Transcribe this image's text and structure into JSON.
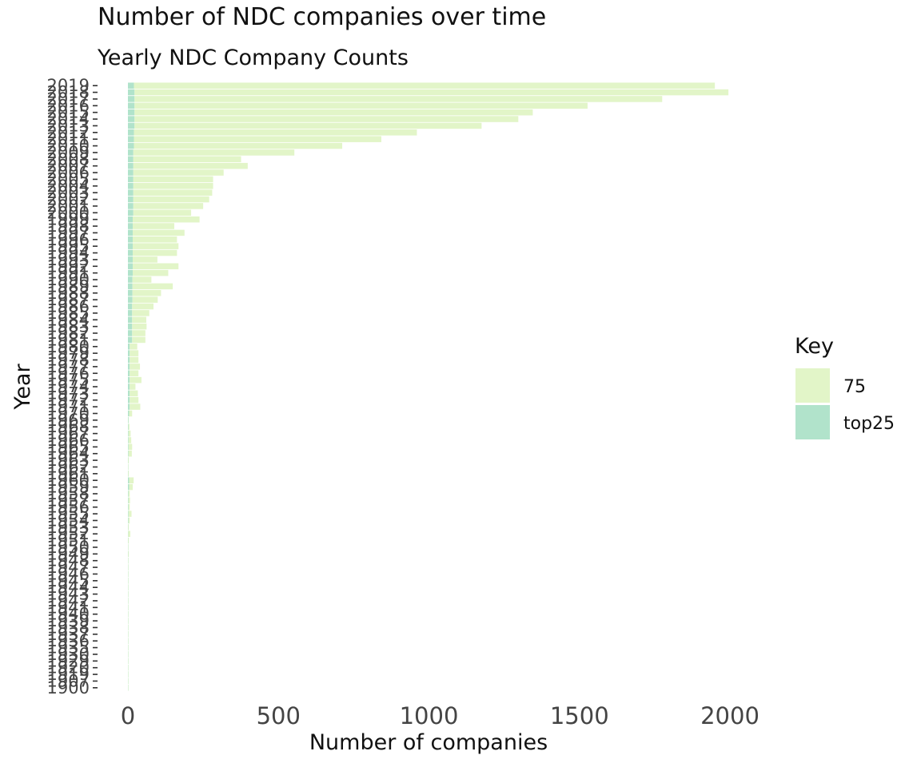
{
  "chart_data": {
    "type": "bar",
    "orientation": "horizontal",
    "stacked": true,
    "title": "Number of NDC companies over time",
    "subtitle": "Yearly NDC Company Counts",
    "xlabel": "Number of companies",
    "ylabel": "Year",
    "xlim": [
      0,
      2100
    ],
    "xticks": [
      0,
      500,
      1000,
      1500,
      2000
    ],
    "grid": false,
    "legend": {
      "title": "Key",
      "position": "right"
    },
    "colors": {
      "75": "#e2f5c8",
      "top25": "#b1e3cb"
    },
    "categories": [
      "2019",
      "2018",
      "2017",
      "2016",
      "2015",
      "2014",
      "2013",
      "2012",
      "2011",
      "2010",
      "2009",
      "2008",
      "2007",
      "2006",
      "2005",
      "2004",
      "2003",
      "2002",
      "2001",
      "2000",
      "1999",
      "1998",
      "1997",
      "1996",
      "1995",
      "1994",
      "1993",
      "1992",
      "1991",
      "1990",
      "1989",
      "1988",
      "1987",
      "1986",
      "1985",
      "1984",
      "1983",
      "1982",
      "1981",
      "1980",
      "1979",
      "1978",
      "1977",
      "1976",
      "1975",
      "1974",
      "1973",
      "1972",
      "1971",
      "1970",
      "1969",
      "1968",
      "1967",
      "1966",
      "1965",
      "1964",
      "1963",
      "1962",
      "1961",
      "1960",
      "1959",
      "1958",
      "1957",
      "1956",
      "1955",
      "1954",
      "1953",
      "1952",
      "1951",
      "1950",
      "1949",
      "1948",
      "1947",
      "1946",
      "1945",
      "1944",
      "1943",
      "1942",
      "1941",
      "1940",
      "1939",
      "1938",
      "1937",
      "1936",
      "1935",
      "1930",
      "1929",
      "1920",
      "1919",
      "1907",
      "1900"
    ],
    "series": [
      {
        "name": "top25",
        "values": [
          20,
          22,
          22,
          22,
          22,
          22,
          22,
          20,
          20,
          20,
          18,
          18,
          18,
          18,
          18,
          18,
          18,
          18,
          18,
          18,
          16,
          16,
          16,
          16,
          16,
          16,
          16,
          16,
          16,
          15,
          15,
          15,
          15,
          14,
          14,
          14,
          14,
          14,
          14,
          6,
          6,
          6,
          6,
          6,
          6,
          6,
          6,
          6,
          6,
          4,
          2,
          2,
          2,
          2,
          2,
          2,
          1,
          1,
          1,
          4,
          4,
          2,
          2,
          2,
          2,
          2,
          1,
          1,
          1,
          1,
          1,
          1,
          1,
          1,
          1,
          1,
          1,
          1,
          1,
          1,
          1,
          1,
          1,
          1,
          1,
          1,
          1,
          1,
          1,
          1,
          1
        ]
      },
      {
        "name": "75",
        "values": [
          1930,
          1973,
          1753,
          1505,
          1323,
          1275,
          1153,
          940,
          822,
          692,
          535,
          358,
          380,
          300,
          265,
          265,
          262,
          252,
          232,
          192,
          222,
          138,
          172,
          147,
          152,
          147,
          82,
          152,
          118,
          63,
          134,
          95,
          84,
          71,
          57,
          47,
          48,
          44,
          44,
          25,
          29,
          29,
          34,
          29,
          39,
          19,
          27,
          29,
          35,
          10,
          1,
          3,
          7,
          9,
          12,
          11,
          2,
          1,
          2,
          15,
          12,
          4,
          5,
          4,
          10,
          4,
          2,
          7,
          2,
          1,
          2,
          1,
          1,
          1,
          1,
          1,
          1,
          1,
          1,
          1,
          1,
          1,
          1,
          1,
          1,
          1,
          1,
          1,
          1,
          1,
          1
        ]
      }
    ]
  }
}
